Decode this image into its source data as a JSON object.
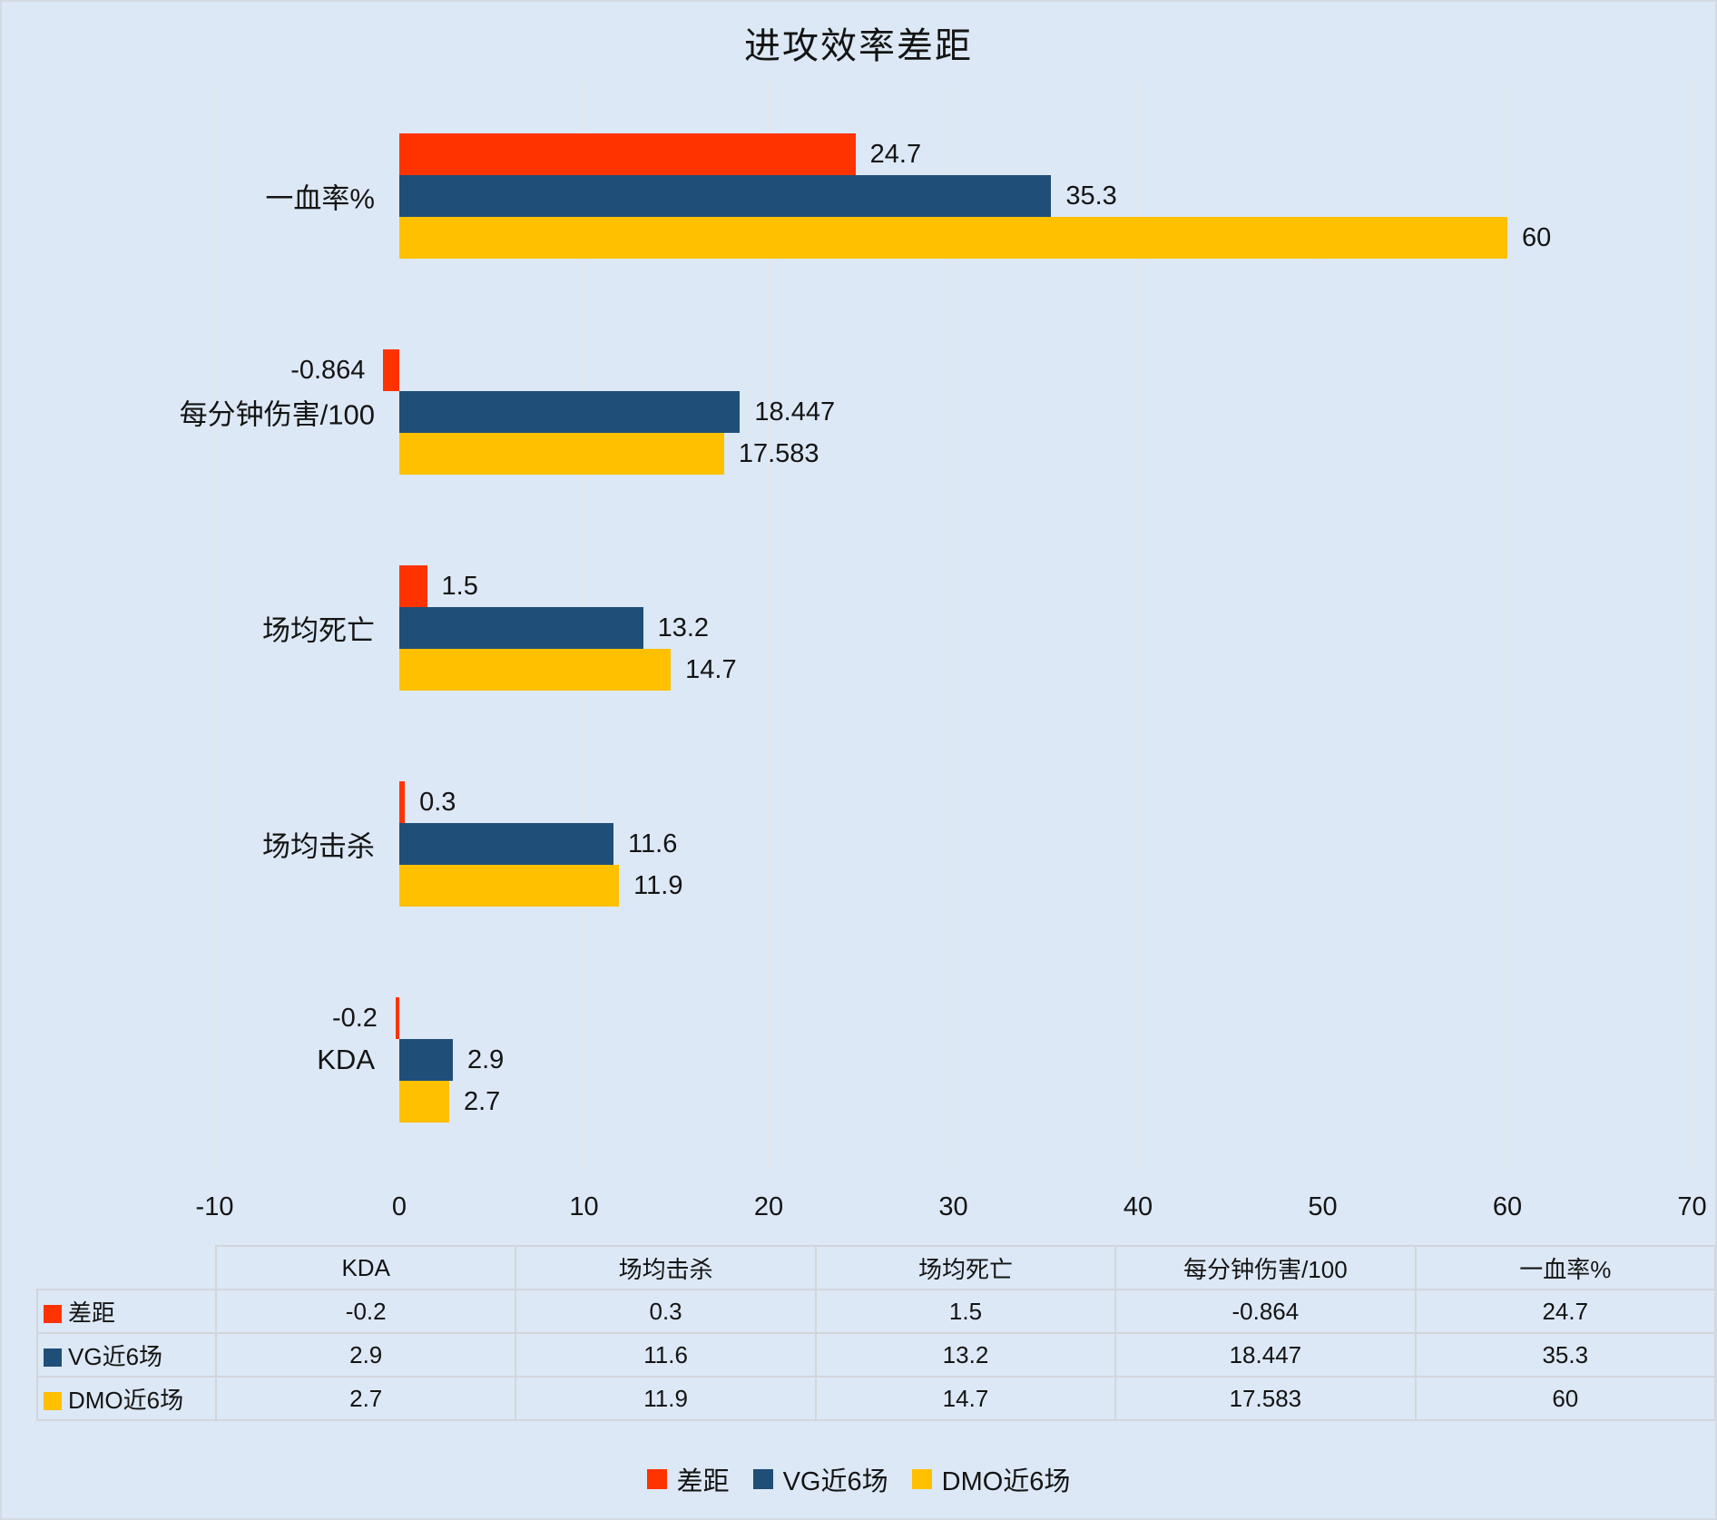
{
  "title": "进攻效率差距",
  "colors": {
    "background": "#DCE8F5",
    "gridline": "#E3E7ED",
    "table_border": "#D2D6DB",
    "text": "#141414",
    "series_gap": "#FF3300",
    "series_vg": "#1F4E79",
    "series_dmo": "#FFC000"
  },
  "chart_data": {
    "type": "bar",
    "orientation": "horizontal",
    "title": "进攻效率差距",
    "categories": [
      "KDA",
      "场均击杀",
      "场均死亡",
      "每分钟伤害/100",
      "一血率%"
    ],
    "category_display_order_top_to_bottom": [
      "一血率%",
      "每分钟伤害/100",
      "场均死亡",
      "场均击杀",
      "KDA"
    ],
    "series": [
      {
        "name": "差距",
        "color": "#FF3300",
        "values": [
          -0.2,
          0.3,
          1.5,
          -0.864,
          24.7
        ]
      },
      {
        "name": "VG近6场",
        "color": "#1F4E79",
        "values": [
          2.9,
          11.6,
          13.2,
          18.447,
          35.3
        ]
      },
      {
        "name": "DMO近6场",
        "color": "#FFC000",
        "values": [
          2.7,
          11.9,
          14.7,
          17.583,
          60
        ]
      }
    ],
    "xlim": [
      -10,
      70
    ],
    "xticks": [
      -10,
      0,
      10,
      20,
      30,
      40,
      50,
      60,
      70
    ],
    "grid": true,
    "value_labels": true,
    "legend_position": "bottom",
    "data_table_shown": true
  }
}
